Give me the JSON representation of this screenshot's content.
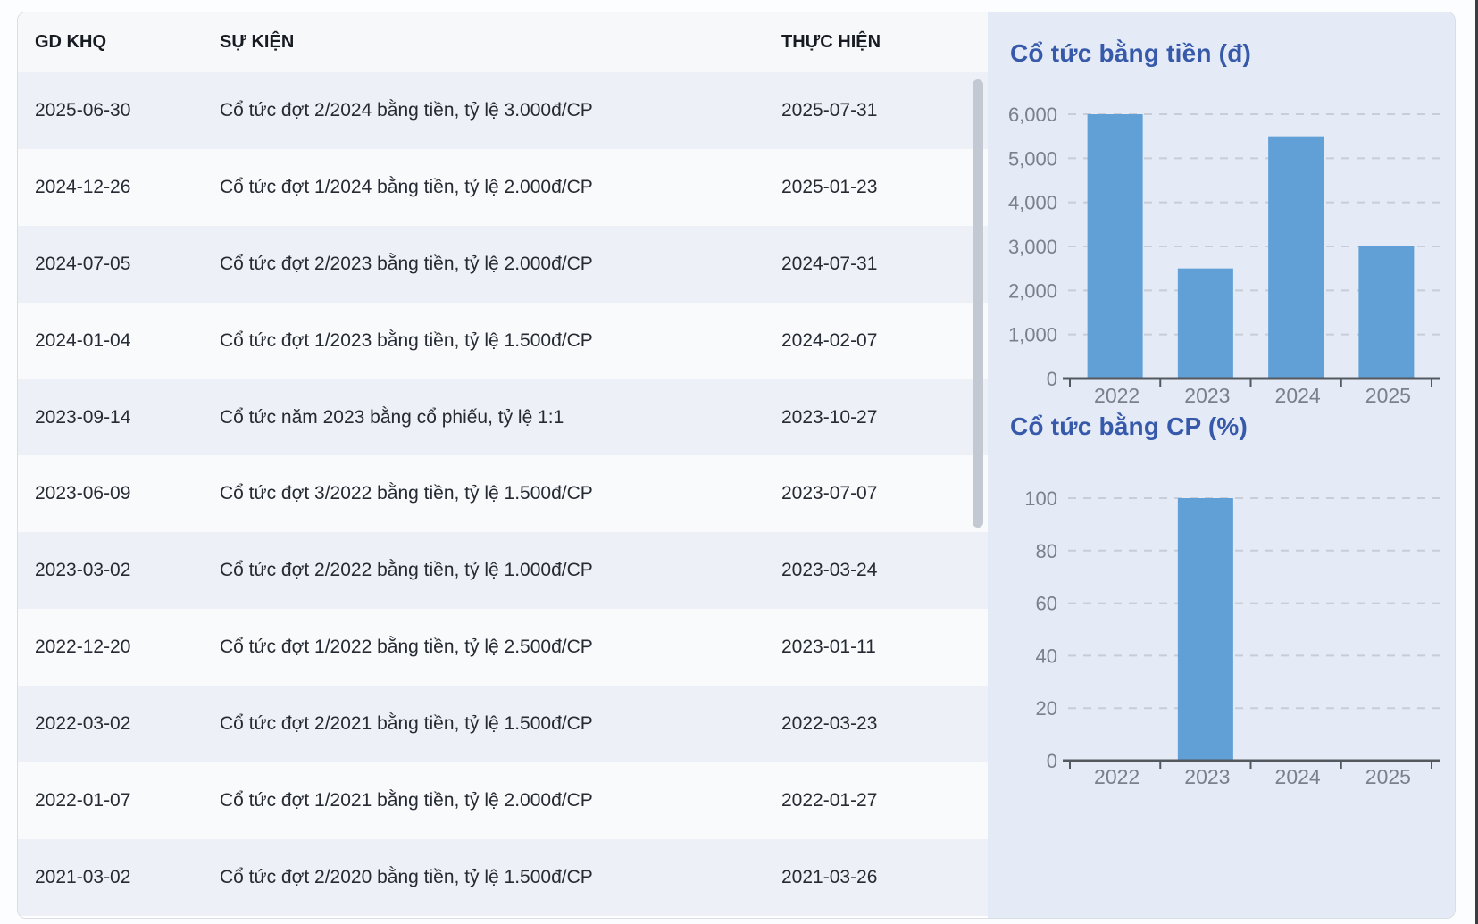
{
  "table": {
    "headers": [
      "GD KHQ",
      "SỰ KIỆN",
      "THỰC HIỆN"
    ],
    "rows": [
      {
        "gd_khq": "2025-06-30",
        "su_kien": "Cổ tức đợt 2/2024 bằng tiền, tỷ lệ 3.000đ/CP",
        "thuc_hien": "2025-07-31"
      },
      {
        "gd_khq": "2024-12-26",
        "su_kien": "Cổ tức đợt 1/2024 bằng tiền, tỷ lệ 2.000đ/CP",
        "thuc_hien": "2025-01-23"
      },
      {
        "gd_khq": "2024-07-05",
        "su_kien": "Cổ tức đợt 2/2023 bằng tiền, tỷ lệ 2.000đ/CP",
        "thuc_hien": "2024-07-31"
      },
      {
        "gd_khq": "2024-01-04",
        "su_kien": "Cổ tức đợt 1/2023 bằng tiền, tỷ lệ 1.500đ/CP",
        "thuc_hien": "2024-02-07"
      },
      {
        "gd_khq": "2023-09-14",
        "su_kien": "Cổ tức năm 2023 bằng cổ phiếu, tỷ lệ 1:1",
        "thuc_hien": "2023-10-27"
      },
      {
        "gd_khq": "2023-06-09",
        "su_kien": "Cổ tức đợt 3/2022 bằng tiền, tỷ lệ 1.500đ/CP",
        "thuc_hien": "2023-07-07"
      },
      {
        "gd_khq": "2023-03-02",
        "su_kien": "Cổ tức đợt 2/2022 bằng tiền, tỷ lệ 1.000đ/CP",
        "thuc_hien": "2023-03-24"
      },
      {
        "gd_khq": "2022-12-20",
        "su_kien": "Cổ tức đợt 1/2022 bằng tiền, tỷ lệ 2.500đ/CP",
        "thuc_hien": "2023-01-11"
      },
      {
        "gd_khq": "2022-03-02",
        "su_kien": "Cổ tức đợt 2/2021 bằng tiền, tỷ lệ 1.500đ/CP",
        "thuc_hien": "2022-03-23"
      },
      {
        "gd_khq": "2022-01-07",
        "su_kien": "Cổ tức đợt 1/2021 bằng tiền, tỷ lệ 2.000đ/CP",
        "thuc_hien": "2022-01-27"
      },
      {
        "gd_khq": "2021-03-02",
        "su_kien": "Cổ tức đợt 2/2020 bằng tiền, tỷ lệ 1.500đ/CP",
        "thuc_hien": "2021-03-26"
      }
    ]
  },
  "chart_data": [
    {
      "type": "bar",
      "title": "Cổ tức bằng tiền (đ)",
      "categories": [
        "2022",
        "2023",
        "2024",
        "2025"
      ],
      "values": [
        6000,
        2500,
        5500,
        3000
      ],
      "ylim": [
        0,
        6000
      ],
      "yticks": [
        0,
        1000,
        2000,
        3000,
        4000,
        5000,
        6000
      ],
      "ytick_labels": [
        "0",
        "1,000",
        "2,000",
        "3,000",
        "4,000",
        "5,000",
        "6,000"
      ],
      "grid": "dashed horizontal",
      "legend": "none"
    },
    {
      "type": "bar",
      "title": "Cổ tức bằng CP (%)",
      "categories": [
        "2022",
        "2023",
        "2024",
        "2025"
      ],
      "values": [
        0,
        100,
        0,
        0
      ],
      "ylim": [
        0,
        100
      ],
      "yticks": [
        0,
        20,
        40,
        60,
        80,
        100
      ],
      "ytick_labels": [
        "0",
        "20",
        "40",
        "60",
        "80",
        "100"
      ],
      "grid": "dashed horizontal",
      "legend": "none"
    }
  ],
  "colors": {
    "bar": "#61a0d6",
    "chart_title": "#3659a9",
    "panel_bg": "#e4eaf6",
    "gridline": "#c8cdd8",
    "axis": "#54585f",
    "axis_label": "#7b818b",
    "row_stripe": "#edf0f6",
    "row_plain": "#f9fafc"
  }
}
